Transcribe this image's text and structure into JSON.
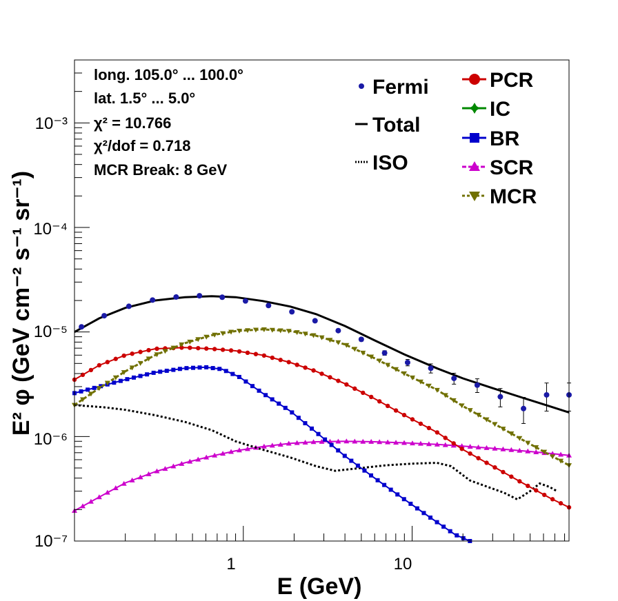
{
  "info_lines": {
    "longitude": "long. 105.0° ... 100.0°",
    "latitude": "lat. 1.5° ... 5.0°",
    "chi2": "χ² = 10.766",
    "chi2_dof": "χ²/dof = 0.718",
    "mcr_break": "MCR Break:  8 GeV"
  },
  "chart_data": {
    "type": "line",
    "title": "",
    "xlabel": "E (GeV)",
    "ylabel": "E² φ (GeV cm⁻² s⁻¹ sr⁻¹)",
    "xscale": "log",
    "yscale": "log",
    "xlim": [
      0.1,
      85
    ],
    "ylim": [
      1e-07,
      0.004
    ],
    "x_tick_labels": [
      "1",
      "10"
    ],
    "y_tick_labels": [
      "10⁻⁷",
      "10⁻⁶",
      "10⁻⁵",
      "10⁻⁴",
      "10⁻³"
    ],
    "legend_position": "top-right",
    "series": [
      {
        "name": "Fermi",
        "style": "points-with-errors",
        "color": "#1a1aa6",
        "x": [
          0.11,
          0.15,
          0.21,
          0.29,
          0.4,
          0.55,
          0.75,
          1.03,
          1.41,
          1.94,
          2.66,
          3.65,
          5.0,
          6.87,
          9.4,
          12.9,
          17.7,
          24.3,
          33.3,
          45.7,
          62.6,
          85.0
        ],
        "y": [
          1.12e-05,
          1.43e-05,
          1.76e-05,
          2.02e-05,
          2.16e-05,
          2.22e-05,
          2.15e-05,
          1.98e-05,
          1.79e-05,
          1.56e-05,
          1.28e-05,
          1.03e-05,
          8.5e-06,
          6.3e-06,
          5.1e-06,
          4.5e-06,
          3.6e-06,
          3.1e-06,
          2.4e-06,
          1.85e-06,
          2.5e-06,
          2.5e-06
        ],
        "err_rel": [
          0.03,
          0.03,
          0.03,
          0.03,
          0.03,
          0.03,
          0.03,
          0.03,
          0.03,
          0.03,
          0.03,
          0.03,
          0.04,
          0.05,
          0.07,
          0.1,
          0.12,
          0.15,
          0.2,
          0.28,
          0.3,
          0.3
        ]
      },
      {
        "name": "Total",
        "style": "solid",
        "color": "#000000",
        "x": [
          0.1,
          0.14,
          0.2,
          0.3,
          0.45,
          0.65,
          0.9,
          1.3,
          1.9,
          2.7,
          4,
          6,
          9,
          14,
          20,
          30,
          45,
          65,
          85
        ],
        "y": [
          1e-05,
          1.35e-05,
          1.7e-05,
          2e-05,
          2.15e-05,
          2.2e-05,
          2.15e-05,
          1.98e-05,
          1.75e-05,
          1.48e-05,
          1.14e-05,
          8.3e-06,
          6.1e-06,
          4.5e-06,
          3.6e-06,
          2.9e-06,
          2.35e-06,
          1.95e-06,
          1.7e-06
        ]
      },
      {
        "name": "ISO",
        "style": "dotted",
        "color": "#000000",
        "x": [
          0.1,
          0.15,
          0.2,
          0.3,
          0.45,
          0.65,
          0.9,
          1.3,
          1.9,
          2.7,
          3.5,
          5,
          7,
          10,
          14,
          17,
          22,
          28,
          35,
          42,
          50,
          57,
          65,
          72
        ],
        "y": [
          2e-06,
          1.9e-06,
          1.8e-06,
          1.6e-06,
          1.38e-06,
          1.15e-06,
          9e-07,
          7.5e-07,
          6.3e-07,
          5.2e-07,
          4.7e-07,
          5e-07,
          5.3e-07,
          5.5e-07,
          5.6e-07,
          5.2e-07,
          3.8e-07,
          3.3e-07,
          2.9e-07,
          2.5e-07,
          3e-07,
          3.55e-07,
          3.3e-07,
          3e-07
        ]
      },
      {
        "name": "PCR",
        "style": "line-circle",
        "color": "#cc0000",
        "x": [
          0.1,
          0.14,
          0.2,
          0.3,
          0.45,
          0.65,
          0.9,
          1.3,
          1.9,
          2.7,
          4,
          6,
          9,
          14,
          20,
          30,
          45,
          65,
          85
        ],
        "y": [
          3.5e-06,
          4.8e-06,
          6e-06,
          6.9e-06,
          7.1e-06,
          6.9e-06,
          6.6e-06,
          6e-06,
          5.1e-06,
          4.2e-06,
          3.2e-06,
          2.3e-06,
          1.6e-06,
          1.1e-06,
          7.5e-07,
          5.2e-07,
          3.6e-07,
          2.6e-07,
          2.1e-07
        ]
      },
      {
        "name": "IC",
        "style": "line-cross",
        "color": "#008800",
        "x": [],
        "y": []
      },
      {
        "name": "BR",
        "style": "line-square",
        "color": "#0000cc",
        "x": [
          0.1,
          0.14,
          0.2,
          0.3,
          0.45,
          0.6,
          0.75,
          0.95,
          1.3,
          1.9,
          2.7,
          4,
          6,
          9,
          13,
          18,
          22
        ],
        "y": [
          2.6e-06,
          3e-06,
          3.5e-06,
          4.1e-06,
          4.5e-06,
          4.6e-06,
          4.4e-06,
          3.7e-06,
          2.6e-06,
          1.75e-06,
          1.1e-06,
          6.5e-07,
          4e-07,
          2.5e-07,
          1.65e-07,
          1.15e-07,
          1e-07
        ]
      },
      {
        "name": "SCR",
        "style": "line-triangle-up",
        "color": "#cc00cc",
        "x": [
          0.1,
          0.15,
          0.2,
          0.3,
          0.45,
          0.65,
          0.9,
          1.3,
          1.9,
          2.7,
          4,
          6,
          9,
          14,
          20,
          30,
          45,
          65,
          85
        ],
        "y": [
          1.95e-07,
          2.8e-07,
          3.6e-07,
          4.6e-07,
          5.6e-07,
          6.5e-07,
          7.3e-07,
          8e-07,
          8.6e-07,
          8.9e-07,
          9e-07,
          8.9e-07,
          8.7e-07,
          8.4e-07,
          8.1e-07,
          7.7e-07,
          7.3e-07,
          6.9e-07,
          6.6e-07
        ]
      },
      {
        "name": "MCR",
        "style": "dashed-triangle-down",
        "color": "#707000",
        "x": [
          0.1,
          0.14,
          0.2,
          0.3,
          0.45,
          0.65,
          0.9,
          1.3,
          1.9,
          2.7,
          4,
          6,
          9,
          14,
          20,
          30,
          45,
          65,
          85
        ],
        "y": [
          2e-06,
          2.9e-06,
          4.2e-06,
          6e-06,
          7.8e-06,
          9.3e-06,
          1.02e-05,
          1.06e-05,
          1.02e-05,
          9.2e-06,
          7.6e-06,
          5.6e-06,
          4e-06,
          2.8e-06,
          1.95e-06,
          1.35e-06,
          9.3e-07,
          6.7e-07,
          5.3e-07
        ]
      }
    ]
  }
}
